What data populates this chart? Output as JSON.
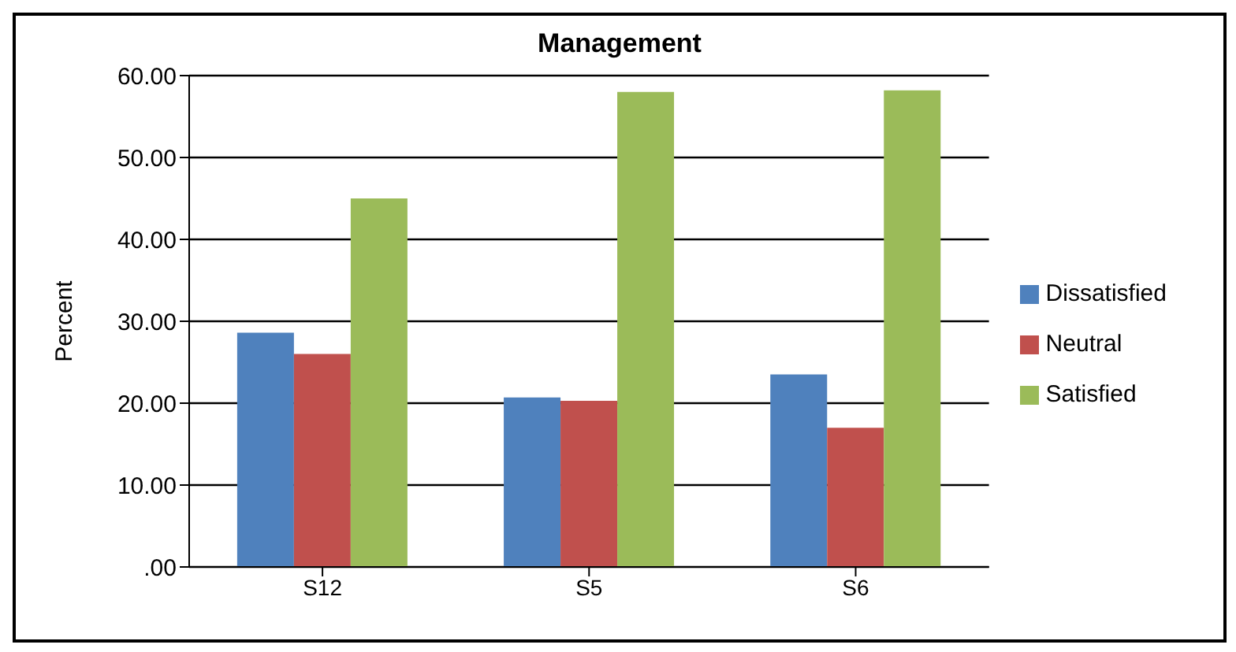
{
  "chart_data": {
    "type": "bar",
    "title": "Management",
    "ylabel": "Percent",
    "categories": [
      "S12",
      "S5",
      "S6"
    ],
    "series": [
      {
        "name": "Dissatisfied",
        "color": "#4f81bd",
        "values": [
          28.6,
          20.7,
          23.5
        ]
      },
      {
        "name": "Neutral",
        "color": "#c0504d",
        "values": [
          26.0,
          20.3,
          17.0
        ]
      },
      {
        "name": "Satisfied",
        "color": "#9bbb59",
        "values": [
          45.0,
          58.0,
          58.2
        ]
      }
    ],
    "ylim": [
      0,
      60
    ],
    "yticks": [
      {
        "value": 0,
        "label": ".00"
      },
      {
        "value": 10,
        "label": "10.00"
      },
      {
        "value": 20,
        "label": "20.00"
      },
      {
        "value": 30,
        "label": "30.00"
      },
      {
        "value": 40,
        "label": "40.00"
      },
      {
        "value": 50,
        "label": "50.00"
      },
      {
        "value": 60,
        "label": "60.00"
      }
    ],
    "grid": "y",
    "legend": "right"
  }
}
